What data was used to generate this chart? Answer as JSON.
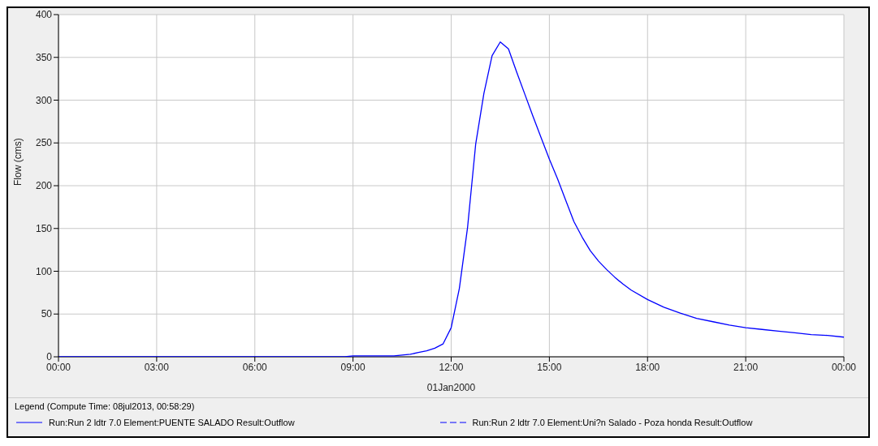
{
  "chart_data": {
    "type": "line",
    "ylabel": "Flow (cms)",
    "xlabel": "01Jan2000",
    "legend_title": "Legend (Compute Time: 08jul2013, 00:58:29)",
    "x": [
      0,
      3,
      6,
      8.75,
      9,
      9.5,
      10.25,
      10.5,
      10.75,
      11,
      11.25,
      11.5,
      11.75,
      12,
      12.25,
      12.5,
      12.75,
      13,
      13.25,
      13.5,
      13.75,
      14,
      14.25,
      14.5,
      14.75,
      15,
      15.25,
      15.5,
      15.75,
      16,
      16.25,
      16.5,
      16.75,
      17,
      17.25,
      17.5,
      18,
      18.5,
      19,
      19.5,
      20,
      20.5,
      21,
      21.5,
      22,
      22.5,
      23,
      23.5,
      24
    ],
    "series": [
      {
        "name": "Run:Run 2 ldtr 7.0 Element:PUENTE SALADO Result:Outflow",
        "color": "#0000ff",
        "line_style": "solid",
        "values": [
          0,
          0,
          0,
          0,
          1,
          1,
          1,
          2,
          3,
          5,
          7,
          10,
          15,
          34,
          80,
          151,
          249,
          308,
          352,
          368,
          360,
          333,
          307,
          281,
          256,
          231,
          208,
          183,
          158,
          140,
          124,
          112,
          102,
          93,
          85,
          78,
          67,
          58,
          51,
          45,
          41,
          37,
          34,
          32,
          30,
          28,
          26,
          25,
          23
        ]
      },
      {
        "name": "Run:Run 2 ldtr 7.0 Element:Uni?n Salado - Poza honda Result:Outflow",
        "color": "#0000ff",
        "line_style": "dashed",
        "values": [
          null,
          null,
          null,
          null,
          null,
          null,
          null,
          null,
          null,
          null,
          null,
          null,
          null,
          null,
          null,
          null,
          null,
          null,
          null,
          null,
          null,
          null,
          null,
          null,
          null,
          null,
          null,
          null,
          null,
          null,
          null,
          null,
          null,
          null,
          null,
          null,
          null,
          null,
          null,
          null,
          null,
          null,
          null,
          null,
          null,
          null,
          null,
          null,
          null
        ]
      }
    ],
    "xlim": [
      0,
      24
    ],
    "xticks": [
      {
        "value": 0,
        "label": "00:00"
      },
      {
        "value": 3,
        "label": "03:00"
      },
      {
        "value": 6,
        "label": "06:00"
      },
      {
        "value": 9,
        "label": "09:00"
      },
      {
        "value": 12,
        "label": "12:00"
      },
      {
        "value": 15,
        "label": "15:00"
      },
      {
        "value": 18,
        "label": "18:00"
      },
      {
        "value": 21,
        "label": "21:00"
      },
      {
        "value": 24,
        "label": "00:00"
      }
    ],
    "ylim": [
      0,
      400
    ],
    "yticks": [
      0,
      50,
      100,
      150,
      200,
      250,
      300,
      350,
      400
    ],
    "grid": true,
    "legend": "bottom",
    "marker": "none"
  }
}
